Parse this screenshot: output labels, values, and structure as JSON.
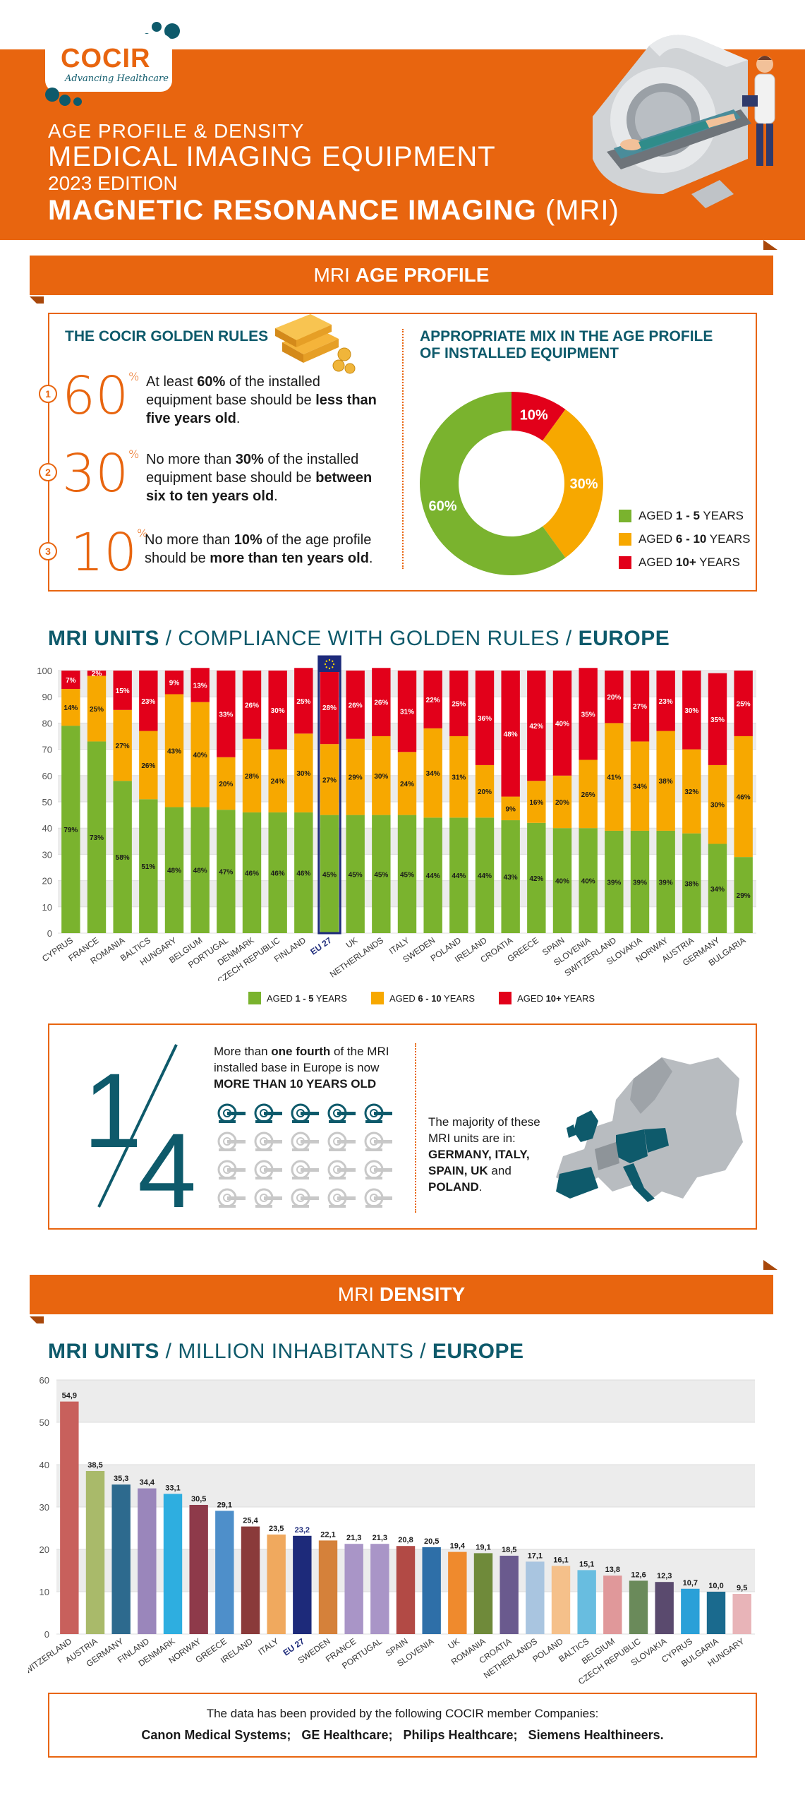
{
  "header": {
    "logo": "COCIR",
    "logo_tagline": "Advancing Healthcare",
    "line1": "AGE PROFILE & DENSITY",
    "line2": "MEDICAL IMAGING EQUIPMENT",
    "line3": "2023 EDITION",
    "line4_bold": "MAGNETIC RESONANCE IMAGING",
    "line4_tail": "(MRI)"
  },
  "age_ribbon": {
    "prefix": "MRI",
    "bold": "AGE PROFILE"
  },
  "golden_rules": {
    "title": "THE COCIR GOLDEN RULES",
    "rules": [
      {
        "index": "1",
        "value": "60",
        "text_a": "At least ",
        "text_b": "60%",
        "text_c": " of the installed equipment base should be ",
        "text_d": "less than five years old",
        "text_e": "."
      },
      {
        "index": "2",
        "value": "30",
        "text_a": "No more than ",
        "text_b": "30%",
        "text_c": " of the installed equipment base should be ",
        "text_d": "between six to ten years old",
        "text_e": "."
      },
      {
        "index": "3",
        "value": "10",
        "text_a": "No more than ",
        "text_b": "10%",
        "text_c": " of the age profile should be ",
        "text_d": "more than ten years old",
        "text_e": "."
      }
    ],
    "percent_sign": "%"
  },
  "mix": {
    "title_line1": "APPROPRIATE MIX IN THE AGE PROFILE",
    "title_line2": "OF INSTALLED EQUIPMENT",
    "legend": [
      {
        "pre": "AGED ",
        "bold": "1 - 5",
        "post": " YEARS",
        "color": "#7ab32e"
      },
      {
        "pre": "AGED ",
        "bold": "6 - 10",
        "post": " YEARS",
        "color": "#f7a800"
      },
      {
        "pre": "AGED ",
        "bold": "10+",
        "post": " YEARS",
        "color": "#e2001a"
      }
    ]
  },
  "compliance": {
    "title_a": "MRI UNITS",
    "title_b": " / COMPLIANCE WITH GOLDEN RULES / ",
    "title_c": "EUROPE",
    "legend": [
      {
        "pre": "AGED ",
        "bold": "1 - 5",
        "post": " YEARS"
      },
      {
        "pre": "AGED ",
        "bold": "6 - 10",
        "post": " YEARS"
      },
      {
        "pre": "AGED ",
        "bold": "10+",
        "post": " YEARS"
      }
    ]
  },
  "quarter": {
    "fraction_top": "1",
    "fraction_bottom": "4",
    "text_a": "More than ",
    "text_b": "one fourth",
    "text_c": " of the MRI installed base in Europe is now ",
    "text_d": "MORE THAN 10 YEARS OLD",
    "majority_a": "The majority of these MRI units are in: ",
    "majority_b": "GERMANY, ITALY, SPAIN, UK",
    "majority_c": " and ",
    "majority_d": "POLAND",
    "majority_e": "."
  },
  "density_ribbon": {
    "prefix": "MRI",
    "bold": "DENSITY"
  },
  "density": {
    "title_a": "MRI UNITS",
    "title_b": " / MILLION INHABITANTS / ",
    "title_c": "EUROPE"
  },
  "footer": {
    "line1": "The data has been provided by the following COCIR member Companies:",
    "companies": [
      "Canon Medical Systems;",
      "GE Healthcare;",
      "Philips Healthcare;",
      "Siemens Healthineers."
    ]
  },
  "colors": {
    "orange": "#e8650f",
    "teal": "#0e5a6b",
    "green": "#7ab32e",
    "amber": "#f7a800",
    "red": "#e2001a",
    "eu_blue": "#1d2a7a"
  },
  "chart_data": [
    {
      "type": "pie",
      "variant": "donut",
      "labels": [
        "AGED 1 - 5 YEARS",
        "AGED 6 - 10 YEARS",
        "AGED 10+ YEARS"
      ],
      "values": [
        60,
        30,
        10
      ],
      "value_labels": [
        "60%",
        "30%",
        "10%"
      ],
      "colors": [
        "#7ab32e",
        "#f7a800",
        "#e2001a"
      ]
    },
    {
      "type": "bar",
      "stacked": true,
      "categories": [
        "CYPRUS",
        "FRANCE",
        "ROMANIA",
        "BALTICS",
        "HUNGARY",
        "BELGIUM",
        "PORTUGAL",
        "DENMARK",
        "CZECH REPUBLIC",
        "FINLAND",
        "EU 27",
        "UK",
        "NETHERLANDS",
        "ITALY",
        "SWEDEN",
        "POLAND",
        "IRELAND",
        "CROATIA",
        "GREECE",
        "SPAIN",
        "SLOVENIA",
        "SWITZERLAND",
        "SLOVAKIA",
        "NORWAY",
        "AUSTRIA",
        "GERMANY",
        "BULGARIA"
      ],
      "highlight_category": "EU 27",
      "series": [
        {
          "name": "AGED 1 - 5 YEARS",
          "color": "#7ab32e",
          "values": [
            79,
            73,
            58,
            51,
            48,
            48,
            47,
            46,
            46,
            46,
            45,
            45,
            45,
            45,
            44,
            44,
            44,
            43,
            42,
            40,
            40,
            39,
            39,
            39,
            38,
            34,
            29
          ]
        },
        {
          "name": "AGED 6 - 10 YEARS",
          "color": "#f7a800",
          "values": [
            14,
            25,
            27,
            26,
            43,
            40,
            20,
            28,
            24,
            30,
            27,
            29,
            30,
            24,
            34,
            31,
            20,
            9,
            16,
            20,
            26,
            41,
            34,
            38,
            32,
            30,
            46
          ]
        },
        {
          "name": "AGED 10+ YEARS",
          "color": "#e2001a",
          "values": [
            7,
            2,
            15,
            23,
            9,
            13,
            33,
            26,
            30,
            25,
            28,
            26,
            26,
            31,
            22,
            25,
            36,
            48,
            42,
            40,
            35,
            20,
            27,
            23,
            30,
            35,
            25
          ]
        }
      ],
      "value_labels": [
        [
          "79%",
          "73%",
          "58%",
          "51%",
          "48%",
          "48%",
          "47%",
          "46%",
          "46%",
          "46%",
          "45%",
          "45%",
          "45%",
          "45%",
          "44%",
          "44%",
          "44%",
          "43%",
          "42%",
          "40%",
          "40%",
          "39%",
          "39%",
          "39%",
          "38%",
          "34%",
          "29%"
        ],
        [
          "14%",
          "25%",
          "27%",
          "26%",
          "43%",
          "40%",
          "20%",
          "28%",
          "24%",
          "30%",
          "27%",
          "29%",
          "30%",
          "24%",
          "34%",
          "31%",
          "20%",
          "9%",
          "16%",
          "20%",
          "26%",
          "41%",
          "34%",
          "38%",
          "32%",
          "30%",
          "46%"
        ],
        [
          "7%",
          "2%",
          "15%",
          "23%",
          "9%",
          "13%",
          "33%",
          "26%",
          "30%",
          "25%",
          "28%",
          "26%",
          "26%",
          "31%",
          "22%",
          "25%",
          "36%",
          "48%",
          "42%",
          "40%",
          "35%",
          "20%",
          "27%",
          "23%",
          "30%",
          "35%",
          "25%"
        ]
      ],
      "yticks": [
        "0",
        "10",
        "20",
        "30",
        "40",
        "50",
        "60",
        "70",
        "80",
        "90",
        "100"
      ],
      "ylim": [
        0,
        100
      ]
    },
    {
      "type": "bar",
      "categories": [
        "SWITZERLAND",
        "AUSTRIA",
        "GERMANY",
        "FINLAND",
        "DENMARK",
        "NORWAY",
        "GREECE",
        "IRELAND",
        "ITALY",
        "EU 27",
        "SWEDEN",
        "FRANCE",
        "PORTUGAL",
        "SPAIN",
        "SLOVENIA",
        "UK",
        "ROMANIA",
        "CROATIA",
        "NETHERLANDS",
        "POLAND",
        "BALTICS",
        "BELGIUM",
        "CZECH REPUBLIC",
        "SLOVAKIA",
        "CYPRUS",
        "BULGARIA",
        "HUNGARY"
      ],
      "values": [
        54.9,
        38.5,
        35.3,
        34.4,
        33.1,
        30.5,
        29.1,
        25.4,
        23.5,
        23.2,
        22.1,
        21.3,
        21.3,
        20.8,
        20.5,
        19.4,
        19.1,
        18.5,
        17.1,
        16.1,
        15.1,
        13.8,
        12.6,
        12.3,
        10.7,
        10.0,
        9.5
      ],
      "value_labels": [
        "54,9",
        "38,5",
        "35,3",
        "34,4",
        "33,1",
        "30,5",
        "29,1",
        "25,4",
        "23,5",
        "23,2",
        "22,1",
        "21,3",
        "21,3",
        "20,8",
        "20,5",
        "19,4",
        "19,1",
        "18,5",
        "17,1",
        "16,1",
        "15,1",
        "13,8",
        "12,6",
        "12,3",
        "10,7",
        "10,0",
        "9,5"
      ],
      "colors": [
        "#c8605c",
        "#a9ba6a",
        "#2d6a8e",
        "#9a86bb",
        "#2eaee0",
        "#8e3a4a",
        "#4e8fca",
        "#8a3a3a",
        "#f0a95e",
        "#1d2a7a",
        "#d5813a",
        "#a995c7",
        "#a995c7",
        "#b24a45",
        "#2e6fa8",
        "#ef8a2d",
        "#6f8a3a",
        "#6a5a8e",
        "#a9c5e0",
        "#f5c08a",
        "#68bde0",
        "#e0989a",
        "#6a8a5a",
        "#5a4a6e",
        "#2aa0d8",
        "#1a6a8e",
        "#e8b4b8"
      ],
      "highlight_category": "EU 27",
      "yticks": [
        "0",
        "10",
        "20",
        "30",
        "40",
        "50",
        "60"
      ],
      "ylim": [
        0,
        60
      ]
    }
  ]
}
